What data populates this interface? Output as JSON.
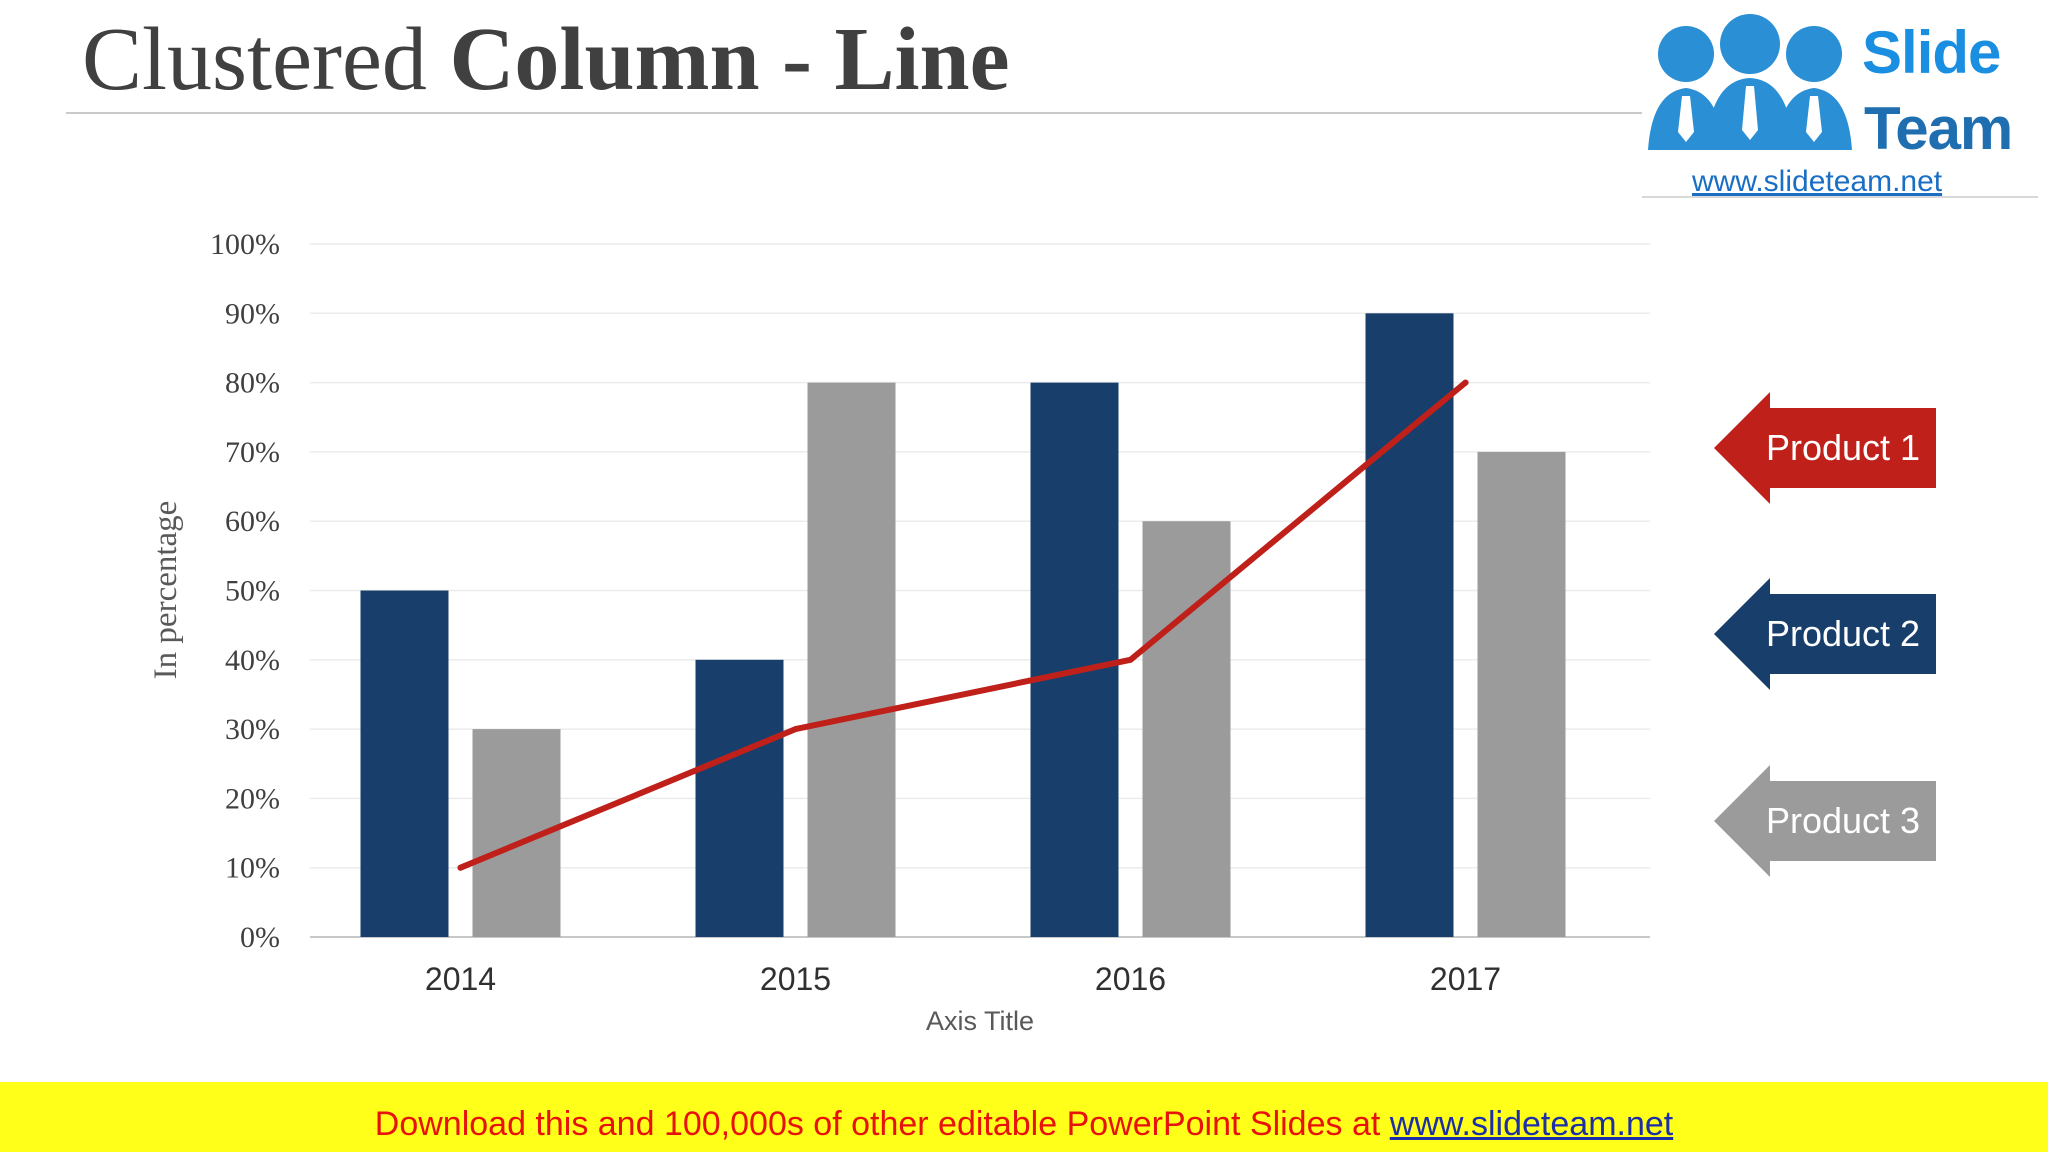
{
  "title": {
    "regular": "Clustered ",
    "bold": "Column - Line"
  },
  "logo": {
    "word1": "Slide",
    "word2": "Team",
    "url": "www.slideteam.net"
  },
  "legend": [
    {
      "label": "Product 1",
      "color": "#c0201a"
    },
    {
      "label": "Product 2",
      "color": "#183f6b"
    },
    {
      "label": "Product 3",
      "color": "#9b9b9c"
    }
  ],
  "banner": {
    "text": "Download this and 100,000s of other editable PowerPoint Slides at ",
    "link": "www.slideteam.net"
  },
  "chart_data": {
    "type": "bar",
    "categories": [
      "2014",
      "2015",
      "2016",
      "2017"
    ],
    "series": [
      {
        "kind": "bar",
        "color": "#183f6b",
        "values": [
          50,
          40,
          80,
          90
        ]
      },
      {
        "kind": "bar",
        "color": "#9b9b9c",
        "values": [
          30,
          80,
          60,
          70
        ]
      },
      {
        "kind": "line",
        "color": "#c0201a",
        "values": [
          10,
          30,
          40,
          80
        ]
      }
    ],
    "xlabel": "Axis Title",
    "ylabel": "In percentage",
    "ylim": [
      0,
      100
    ],
    "yticks": [
      "0%",
      "10%",
      "20%",
      "30%",
      "40%",
      "50%",
      "60%",
      "70%",
      "80%",
      "90%",
      "100%"
    ],
    "grid": true
  }
}
